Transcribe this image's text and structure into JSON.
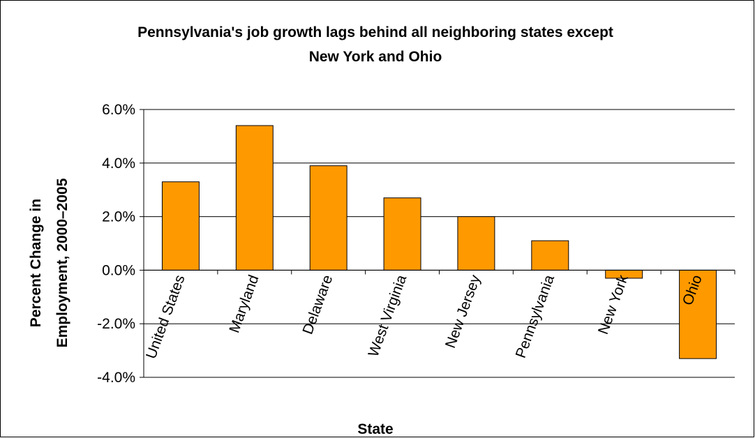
{
  "chart_data": {
    "type": "bar",
    "title_lines": [
      "Pennsylvania's job growth lags behind all neighboring states except",
      "New York and Ohio"
    ],
    "xlabel": "State",
    "ylabel_lines": [
      "Percent Change in",
      "Employment, 2000–2005"
    ],
    "categories": [
      "United States",
      "Maryland",
      "Delaware",
      "West Virginia",
      "New Jersey",
      "Pennsylvania",
      "New York",
      "Ohio"
    ],
    "values": [
      3.3,
      5.4,
      3.9,
      2.7,
      2.0,
      1.1,
      -0.3,
      -3.3
    ],
    "value_unit": "percent",
    "ylim": [
      -4.0,
      6.0
    ],
    "yticks": [
      -4.0,
      -2.0,
      0.0,
      2.0,
      4.0,
      6.0
    ],
    "ytick_labels": [
      "-4.0%",
      "-2.0%",
      "0.0%",
      "2.0%",
      "4.0%",
      "6.0%"
    ],
    "grid": true,
    "legend": "none",
    "bar_color": "#FF9900",
    "bar_outline_color": "#000000",
    "gridline_color": "#000000"
  }
}
